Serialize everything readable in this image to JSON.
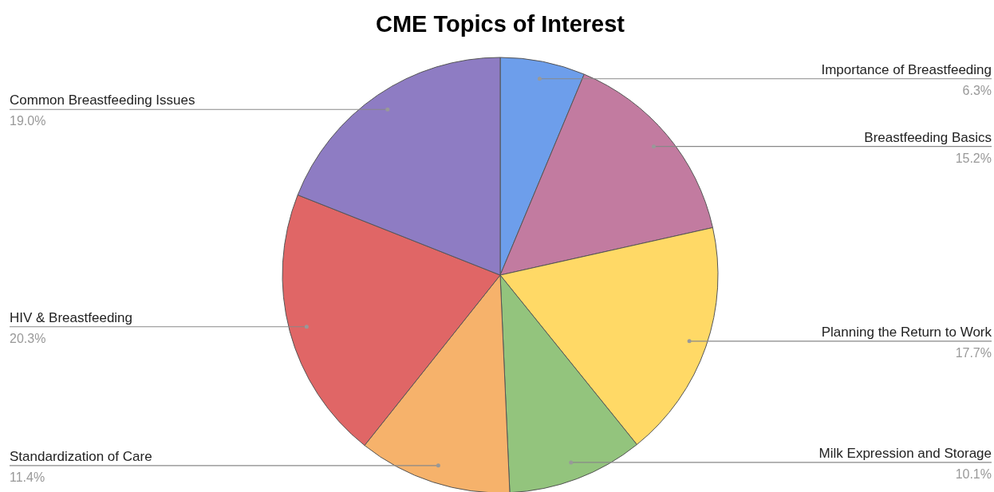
{
  "chart_data": {
    "type": "pie",
    "title": "CME Topics of Interest",
    "categories": [
      "Importance of Breastfeeding",
      "Breastfeeding Basics",
      "Planning the Return to Work",
      "Milk Expression and Storage",
      "Standardization of Care",
      "HIV & Breastfeeding",
      "Common Breastfeeding Issues"
    ],
    "values": [
      6.3,
      15.2,
      17.7,
      10.1,
      11.4,
      20.3,
      19.0
    ],
    "value_labels": [
      "6.3%",
      "15.2%",
      "17.7%",
      "10.1%",
      "11.4%",
      "20.3%",
      "19.0%"
    ],
    "colors": [
      "#6d9eeb",
      "#c27ba0",
      "#ffd966",
      "#93c47d",
      "#f6b26b",
      "#e06666",
      "#8e7cc3"
    ]
  }
}
